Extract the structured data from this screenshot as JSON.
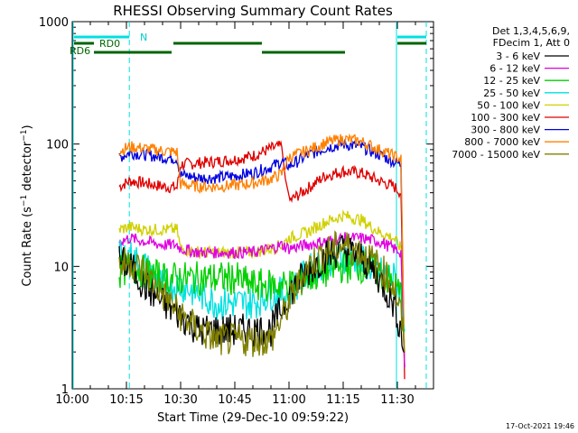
{
  "chart_data": {
    "type": "line",
    "title": "RHESSI Observing Summary Count Rates",
    "xlabel": "Start Time (29-Dec-10 09:59:22)",
    "ylabel": "Count Rate (s⁻¹ detector⁻¹)",
    "yscale": "log",
    "ylim": [
      1,
      1000
    ],
    "xlim_minutes": [
      0,
      100
    ],
    "x_tick_labels": [
      "10:00",
      "10:15",
      "10:30",
      "10:45",
      "11:00",
      "11:15",
      "11:30"
    ],
    "y_tick_labels": [
      "1",
      "10",
      "100",
      "1000"
    ],
    "footer": "17-Oct-2021 19:46",
    "legend_header": [
      "Det 1,3,4,5,6,9,",
      "FDecim 1, Att 0"
    ],
    "series": [
      {
        "name": "3 - 6 keV",
        "color": "#000000",
        "x": [
          13,
          16,
          20,
          25,
          30,
          35,
          40,
          45,
          50,
          55,
          60,
          65,
          70,
          75,
          80,
          85,
          89,
          91,
          92
        ],
        "y": [
          11,
          10,
          7,
          5,
          4,
          3,
          3,
          3,
          3,
          3,
          6,
          9,
          12,
          14,
          12,
          8,
          5,
          3,
          2
        ]
      },
      {
        "name": "6 - 12 keV",
        "color": "#e000e0",
        "x": [
          13,
          16,
          20,
          25,
          29,
          30,
          35,
          40,
          45,
          50,
          55,
          58,
          60,
          65,
          70,
          75,
          80,
          85,
          89,
          91,
          92
        ],
        "y": [
          16,
          17,
          16,
          15,
          15,
          14,
          13,
          13,
          13,
          13,
          14,
          15,
          14,
          15,
          16,
          17,
          17,
          16,
          14,
          13,
          1.5
        ]
      },
      {
        "name": "12 - 25 keV",
        "color": "#00d000",
        "x": [
          13,
          16,
          20,
          25,
          30,
          35,
          40,
          45,
          50,
          55,
          60,
          65,
          70,
          75,
          80,
          85,
          89,
          91,
          92
        ],
        "y": [
          9,
          10,
          9,
          8,
          8,
          8,
          8,
          8,
          7,
          7,
          7,
          8,
          9,
          10,
          10,
          9,
          7,
          6,
          3
        ]
      },
      {
        "name": "25 - 50 keV",
        "color": "#00e0e0",
        "x": [
          13,
          16,
          20,
          25,
          30,
          35,
          40,
          45,
          50,
          55,
          60,
          65,
          70,
          75,
          80,
          85,
          89,
          91,
          92
        ],
        "y": [
          12,
          12,
          10,
          7,
          7,
          6,
          5,
          5,
          5,
          6,
          6,
          9,
          11,
          12,
          11,
          9,
          8,
          6,
          3
        ]
      },
      {
        "name": "50 - 100 keV",
        "color": "#d0d000",
        "x": [
          13,
          16,
          20,
          25,
          29,
          30,
          35,
          40,
          45,
          50,
          55,
          58,
          60,
          65,
          70,
          75,
          80,
          85,
          89,
          91,
          92
        ],
        "y": [
          20,
          21,
          20,
          20,
          20,
          14,
          13,
          13,
          13,
          13,
          14,
          15,
          17,
          19,
          23,
          26,
          24,
          19,
          17,
          14,
          2
        ]
      },
      {
        "name": "100 - 300 keV",
        "color": "#e00000",
        "x": [
          13,
          16,
          20,
          25,
          29,
          30,
          35,
          40,
          45,
          50,
          55,
          58,
          60,
          65,
          70,
          75,
          80,
          85,
          89,
          91,
          92
        ],
        "y": [
          45,
          50,
          48,
          45,
          44,
          68,
          70,
          72,
          75,
          80,
          92,
          96,
          34,
          43,
          55,
          60,
          58,
          50,
          45,
          40,
          1.2
        ]
      },
      {
        "name": "300 - 800 keV",
        "color": "#0000e0",
        "x": [
          13,
          16,
          20,
          25,
          29,
          30,
          35,
          40,
          45,
          50,
          55,
          58,
          60,
          65,
          70,
          75,
          80,
          85,
          89,
          91,
          92
        ],
        "y": [
          78,
          85,
          82,
          78,
          76,
          56,
          53,
          53,
          55,
          58,
          65,
          72,
          66,
          80,
          93,
          100,
          95,
          82,
          72,
          68,
          1.5
        ]
      },
      {
        "name": "800 - 7000 keV",
        "color": "#ff8000",
        "x": [
          13,
          16,
          20,
          25,
          29,
          30,
          35,
          40,
          45,
          50,
          55,
          58,
          60,
          65,
          70,
          75,
          80,
          85,
          89,
          91,
          92
        ],
        "y": [
          88,
          95,
          92,
          88,
          86,
          47,
          45,
          45,
          46,
          48,
          52,
          57,
          78,
          88,
          102,
          110,
          105,
          90,
          80,
          75,
          1.5
        ]
      },
      {
        "name": "7000 - 15000 keV",
        "color": "#808000",
        "x": [
          13,
          16,
          20,
          25,
          30,
          35,
          40,
          45,
          50,
          55,
          60,
          65,
          70,
          75,
          80,
          85,
          89,
          91,
          92
        ],
        "y": [
          10,
          11,
          9,
          6,
          4,
          3,
          2.5,
          2.5,
          2.5,
          2.5,
          5,
          10,
          13,
          15,
          13,
          10,
          7,
          4,
          2
        ]
      }
    ],
    "annotations": {
      "N": "N",
      "RD0": "RD0",
      "RD6": "RD6"
    },
    "intervals": {
      "N": [
        [
          0,
          15.8
        ],
        [
          89.5,
          98
        ]
      ],
      "RD0": [
        [
          0,
          6
        ]
      ],
      "RD6": [
        [
          6,
          27.5
        ],
        [
          52.5,
          75.5
        ]
      ],
      "green_high": [
        [
          0,
          6
        ],
        [
          27.5,
          52.5
        ],
        [
          89.5,
          98
        ]
      ],
      "cyan_vlines_solid": [
        0,
        89.5
      ],
      "cyan_vlines_dashed": [
        15.8,
        98
      ]
    }
  }
}
